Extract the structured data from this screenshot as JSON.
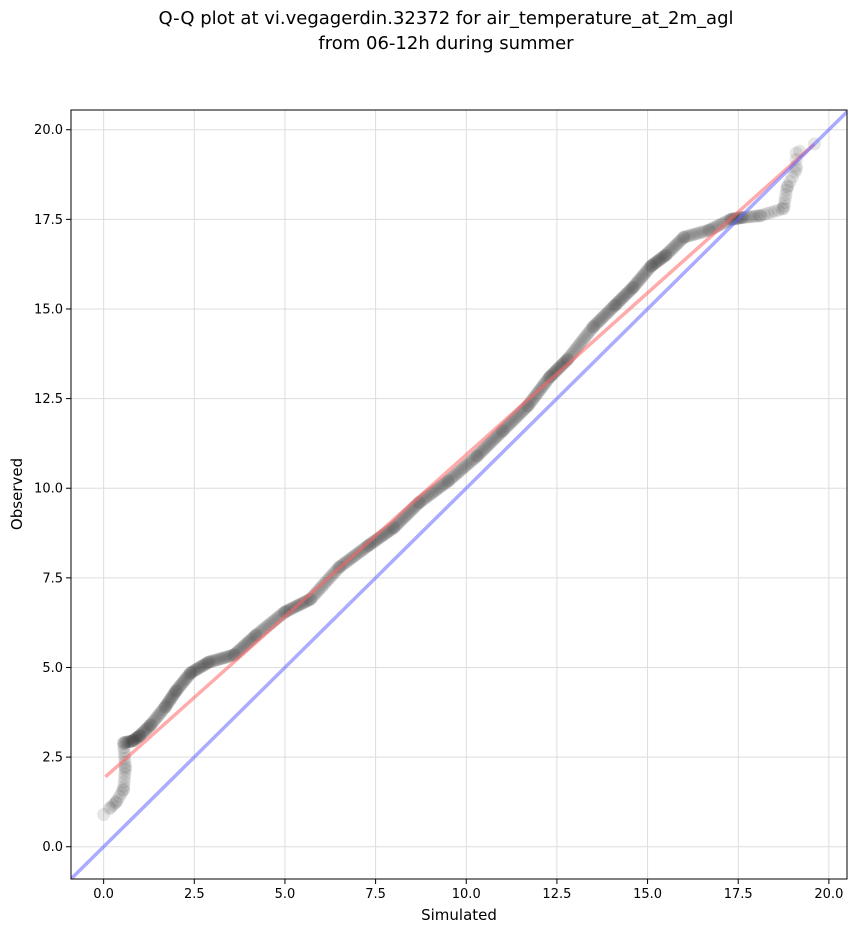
{
  "chart_data": {
    "type": "scatter",
    "title_lines": [
      "Q-Q plot at vi.vegagerdin.32372 for air_temperature_at_2m_agl",
      "from 06-12h during summer"
    ],
    "xlabel": "Simulated",
    "ylabel": "Observed",
    "xlim": [
      -0.9,
      20.5
    ],
    "ylim": [
      -0.9,
      20.55
    ],
    "xticks": [
      0.0,
      2.5,
      5.0,
      7.5,
      10.0,
      12.5,
      15.0,
      17.5,
      20.0
    ],
    "xtick_labels": [
      "0.0",
      "2.5",
      "5.0",
      "7.5",
      "10.0",
      "12.5",
      "15.0",
      "17.5",
      "20.0"
    ],
    "yticks": [
      0.0,
      2.5,
      5.0,
      7.5,
      10.0,
      12.5,
      15.0,
      17.5,
      20.0
    ],
    "ytick_labels": [
      "0.0",
      "2.5",
      "5.0",
      "7.5",
      "10.0",
      "12.5",
      "15.0",
      "17.5",
      "20.0"
    ],
    "grid": true,
    "colors": {
      "points": "#333333",
      "fit_line": "#ff6666",
      "identity_line": "#6666ff",
      "grid": "#dddddd"
    },
    "fit_line": {
      "x": [
        0.05,
        19.6
      ],
      "y": [
        1.95,
        19.6
      ]
    },
    "identity_line": {
      "x": [
        -0.9,
        20.5
      ],
      "y": [
        -0.9,
        20.5
      ]
    },
    "anchors": [
      [
        0.0,
        0.9
      ],
      [
        0.2,
        1.1
      ],
      [
        0.35,
        1.25
      ],
      [
        0.55,
        1.6
      ],
      [
        0.6,
        2.2
      ],
      [
        0.55,
        2.9
      ],
      [
        0.8,
        2.95
      ],
      [
        1.0,
        3.1
      ],
      [
        1.3,
        3.4
      ],
      [
        1.7,
        3.9
      ],
      [
        2.0,
        4.35
      ],
      [
        2.4,
        4.85
      ],
      [
        2.9,
        5.15
      ],
      [
        3.6,
        5.35
      ],
      [
        4.2,
        5.9
      ],
      [
        5.0,
        6.55
      ],
      [
        5.7,
        6.9
      ],
      [
        6.5,
        7.8
      ],
      [
        7.3,
        8.4
      ],
      [
        8.0,
        8.9
      ],
      [
        8.7,
        9.6
      ],
      [
        9.5,
        10.2
      ],
      [
        10.3,
        10.9
      ],
      [
        11.0,
        11.6
      ],
      [
        11.7,
        12.3
      ],
      [
        12.3,
        13.1
      ],
      [
        12.8,
        13.6
      ],
      [
        13.5,
        14.5
      ],
      [
        14.1,
        15.1
      ],
      [
        14.6,
        15.6
      ],
      [
        15.1,
        16.2
      ],
      [
        15.5,
        16.5
      ],
      [
        16.0,
        17.0
      ],
      [
        16.7,
        17.2
      ],
      [
        17.3,
        17.5
      ],
      [
        17.6,
        17.55
      ],
      [
        18.1,
        17.6
      ],
      [
        18.75,
        17.8
      ],
      [
        18.85,
        18.4
      ],
      [
        19.1,
        18.9
      ],
      [
        19.1,
        19.35
      ],
      [
        19.6,
        19.6
      ]
    ],
    "n_points": 520
  }
}
